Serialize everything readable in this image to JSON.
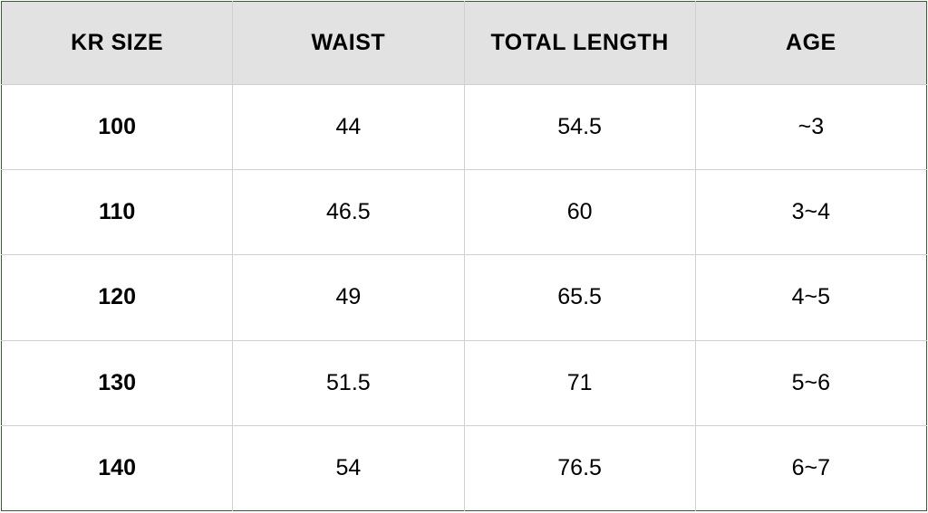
{
  "table": {
    "type": "table",
    "background_color": "#ffffff",
    "outer_border_color": "#3a5a3a",
    "grid_color": "#d0d0d0",
    "header_background": "#e2e2e2",
    "header_font_weight": 700,
    "header_fontsize": 25,
    "body_fontsize": 25,
    "text_color": "#000000",
    "first_column_bold": true,
    "columns": [
      {
        "label": "KR SIZE",
        "width_pct": 25,
        "align": "center"
      },
      {
        "label": "WAIST",
        "width_pct": 25,
        "align": "center"
      },
      {
        "label": "TOTAL LENGTH",
        "width_pct": 25,
        "align": "center"
      },
      {
        "label": "AGE",
        "width_pct": 25,
        "align": "center"
      }
    ],
    "rows": [
      [
        "100",
        "44",
        "54.5",
        "~3"
      ],
      [
        "110",
        "46.5",
        "60",
        "3~4"
      ],
      [
        "120",
        "49",
        "65.5",
        "4~5"
      ],
      [
        "130",
        "51.5",
        "71",
        "5~6"
      ],
      [
        "140",
        "54",
        "76.5",
        "6~7"
      ]
    ]
  }
}
